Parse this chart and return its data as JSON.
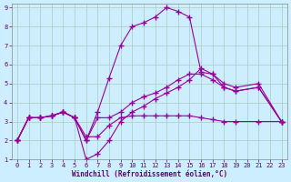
{
  "xlabel": "Windchill (Refroidissement éolien,°C)",
  "bg_color": "#cceeff",
  "line_color": "#990099",
  "grid_color": "#aaccbb",
  "xlim": [
    -0.5,
    23.5
  ],
  "ylim": [
    1,
    9.2
  ],
  "xticks": [
    0,
    1,
    2,
    3,
    4,
    5,
    6,
    7,
    8,
    9,
    10,
    11,
    12,
    13,
    14,
    15,
    16,
    17,
    18,
    19,
    20,
    21,
    22,
    23
  ],
  "yticks": [
    1,
    2,
    3,
    4,
    5,
    6,
    7,
    8,
    9
  ],
  "series": [
    {
      "x": [
        0,
        1,
        2,
        3,
        4,
        5,
        6,
        7,
        8,
        9,
        10,
        11,
        12,
        13,
        14,
        15,
        16,
        17,
        18,
        19,
        21,
        23
      ],
      "y": [
        2.0,
        3.2,
        3.2,
        3.3,
        3.5,
        3.2,
        2.2,
        2.2,
        2.8,
        3.2,
        3.3,
        3.3,
        3.3,
        3.3,
        3.3,
        3.3,
        3.2,
        3.1,
        3.0,
        3.0,
        3.0,
        3.0
      ]
    },
    {
      "x": [
        0,
        1,
        2,
        3,
        4,
        5,
        6,
        7,
        8,
        9,
        10,
        11,
        12,
        13,
        14,
        15,
        16,
        17,
        18,
        19,
        21,
        23
      ],
      "y": [
        2.0,
        3.2,
        3.2,
        3.3,
        3.5,
        3.2,
        2.0,
        3.5,
        5.3,
        7.0,
        8.0,
        8.2,
        8.5,
        9.0,
        8.8,
        8.5,
        5.6,
        5.5,
        5.0,
        4.8,
        5.0,
        3.0
      ]
    },
    {
      "x": [
        0,
        1,
        2,
        3,
        4,
        5,
        6,
        7,
        8,
        9,
        10,
        11,
        12,
        13,
        14,
        15,
        16,
        17,
        18,
        19,
        21,
        23
      ],
      "y": [
        2.0,
        3.2,
        3.2,
        3.3,
        3.5,
        3.2,
        2.0,
        3.2,
        3.2,
        3.5,
        4.0,
        4.3,
        4.5,
        4.8,
        5.2,
        5.5,
        5.5,
        5.2,
        4.8,
        4.6,
        4.8,
        3.0
      ]
    },
    {
      "x": [
        0,
        1,
        2,
        3,
        4,
        5,
        6,
        7,
        8,
        9,
        10,
        11,
        12,
        13,
        14,
        15,
        16,
        17,
        18,
        19,
        21,
        23
      ],
      "y": [
        2.0,
        3.2,
        3.2,
        3.3,
        3.5,
        3.2,
        1.0,
        1.3,
        2.0,
        3.0,
        3.5,
        3.8,
        4.2,
        4.5,
        4.8,
        5.2,
        5.8,
        5.5,
        4.8,
        4.6,
        4.8,
        3.0
      ]
    }
  ]
}
